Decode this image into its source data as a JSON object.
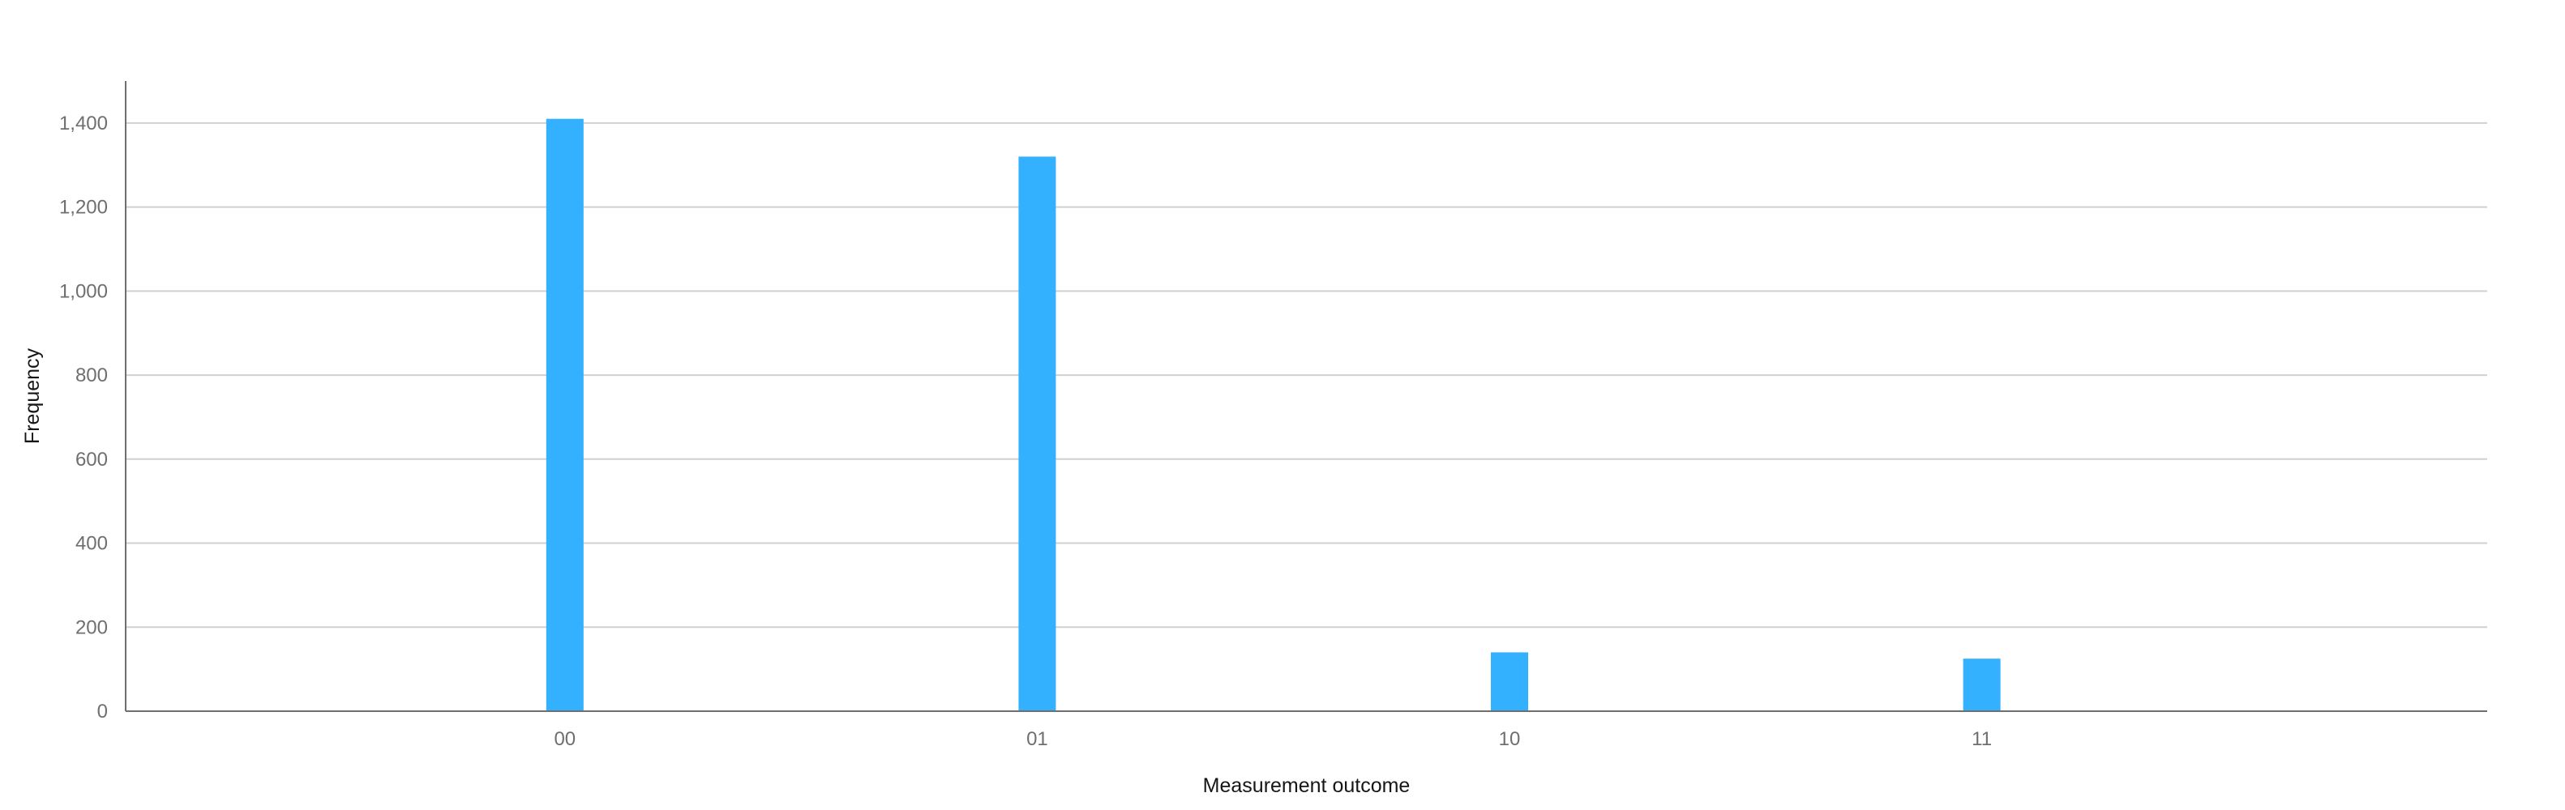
{
  "chart_data": {
    "type": "bar",
    "title": "",
    "xlabel": "Measurement outcome",
    "ylabel": "Frequency",
    "categories": [
      "00",
      "01",
      "10",
      "11"
    ],
    "values": [
      1410,
      1320,
      140,
      125
    ],
    "ylim": [
      0,
      1500
    ],
    "yticks": [
      0,
      200,
      400,
      600,
      800,
      1000,
      1200,
      1400
    ],
    "ytick_labels": [
      "0",
      "200",
      "400",
      "600",
      "800",
      "1,000",
      "1,200",
      "1,400"
    ],
    "grid": true,
    "legend": "none",
    "bar_color": "#33b1ff"
  }
}
